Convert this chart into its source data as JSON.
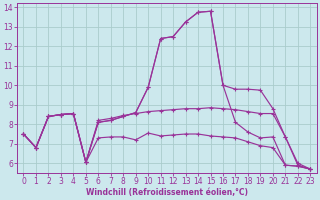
{
  "bg_color": "#cce8ed",
  "line_color": "#993399",
  "grid_color": "#aacccc",
  "xlabel": "Windchill (Refroidissement éolien,°C)",
  "ylim": [
    5.5,
    14.2
  ],
  "xlim": [
    -0.5,
    23.5
  ],
  "yticks": [
    6,
    7,
    8,
    9,
    10,
    11,
    12,
    13,
    14
  ],
  "xticks": [
    0,
    1,
    2,
    3,
    4,
    5,
    6,
    7,
    8,
    9,
    10,
    11,
    12,
    13,
    14,
    15,
    16,
    17,
    18,
    19,
    20,
    21,
    22,
    23
  ],
  "lines": [
    {
      "x": [
        0,
        1,
        2,
        3,
        4,
        5,
        6,
        7,
        8,
        9,
        10,
        11,
        12,
        13,
        14,
        15,
        16,
        17,
        18,
        19,
        20,
        21,
        22,
        23
      ],
      "y": [
        7.5,
        6.8,
        8.4,
        8.5,
        8.55,
        6.05,
        7.3,
        7.35,
        7.35,
        7.2,
        7.55,
        7.4,
        7.45,
        7.5,
        7.5,
        7.4,
        7.35,
        7.3,
        7.1,
        6.9,
        6.8,
        5.9,
        5.85,
        5.7
      ]
    },
    {
      "x": [
        0,
        1,
        2,
        3,
        4,
        5,
        6,
        7,
        8,
        9,
        10,
        11,
        12,
        13,
        14,
        15,
        16,
        17,
        18,
        19,
        20,
        21,
        22,
        23
      ],
      "y": [
        7.5,
        6.8,
        8.4,
        8.5,
        8.55,
        6.05,
        8.1,
        8.2,
        8.4,
        8.6,
        9.9,
        12.4,
        12.5,
        13.25,
        13.75,
        13.8,
        10.0,
        9.8,
        9.8,
        9.75,
        8.8,
        7.35,
        5.9,
        5.7
      ]
    },
    {
      "x": [
        0,
        1,
        2,
        3,
        4,
        5,
        6,
        7,
        8,
        9,
        10,
        11,
        12,
        13,
        14,
        15,
        16,
        17,
        18,
        19,
        20,
        21,
        22,
        23
      ],
      "y": [
        7.5,
        6.8,
        8.4,
        8.5,
        8.55,
        6.05,
        8.1,
        8.2,
        8.4,
        8.6,
        9.9,
        12.4,
        12.5,
        13.25,
        13.75,
        13.8,
        10.0,
        8.1,
        7.6,
        7.3,
        7.35,
        5.9,
        5.85,
        5.7
      ]
    },
    {
      "x": [
        0,
        1,
        2,
        3,
        4,
        5,
        6,
        7,
        8,
        9,
        10,
        11,
        12,
        13,
        14,
        15,
        16,
        17,
        18,
        19,
        20,
        21,
        22,
        23
      ],
      "y": [
        7.5,
        6.8,
        8.4,
        8.5,
        8.55,
        6.05,
        8.2,
        8.3,
        8.45,
        8.55,
        8.65,
        8.7,
        8.75,
        8.8,
        8.8,
        8.85,
        8.8,
        8.75,
        8.65,
        8.55,
        8.55,
        7.35,
        6.0,
        5.7
      ]
    }
  ]
}
